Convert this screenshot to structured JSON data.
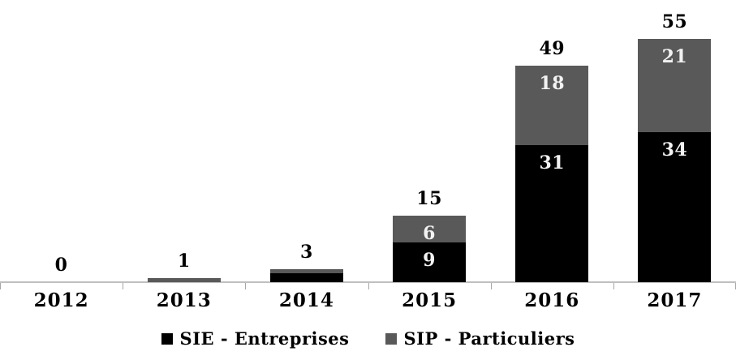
{
  "chart_data": {
    "type": "bar",
    "stacked": true,
    "orientation": "vertical",
    "title": "",
    "xlabel": "",
    "ylabel": "",
    "categories": [
      "2012",
      "2013",
      "2014",
      "2015",
      "2016",
      "2017"
    ],
    "series": [
      {
        "name": "SIE - Entreprises",
        "color": "#000000",
        "label_color": "#f2f2f2",
        "values": [
          0,
          0,
          2,
          9,
          31,
          34
        ],
        "segment_labels": [
          "",
          "",
          "",
          "9",
          "31",
          "34"
        ]
      },
      {
        "name": "SIP - Particuliers",
        "color": "#595959",
        "label_color": "#f2f2f2",
        "values": [
          0,
          1,
          1,
          6,
          18,
          21
        ],
        "segment_labels": [
          "",
          "",
          "",
          "6",
          "18",
          "21"
        ]
      }
    ],
    "totals": [
      "0",
      "1",
      "3",
      "15",
      "49",
      "55"
    ],
    "ylim": [
      0,
      55
    ],
    "grid": false,
    "axis_color": "#bfbfbf",
    "legend_position": "bottom",
    "background_color": "#ffffff"
  }
}
